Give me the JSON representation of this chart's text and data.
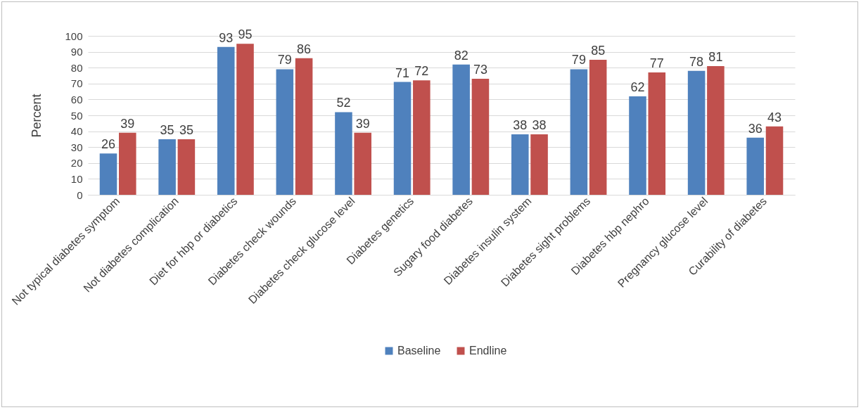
{
  "chart_data": {
    "type": "bar",
    "ylabel": "Percent",
    "categories": [
      "Not typical diabetes symptom",
      "Not diabetes complication",
      "Diet for hbp or diabetics",
      "Diabetes check wounds",
      "Diabetes check glucose level",
      "Diabetes genetics",
      "Sugary food diabetes",
      "Diabetes insulin system",
      "Diabetes sight problems",
      "Diabetes hbp nephro",
      "Pregnancy glucose level",
      "Curability of diabetes"
    ],
    "series": [
      {
        "name": "Baseline",
        "color": "#4f81bd",
        "values": [
          26,
          35,
          93,
          79,
          52,
          71,
          82,
          38,
          79,
          62,
          78,
          36
        ]
      },
      {
        "name": "Endline",
        "color": "#c0504d",
        "values": [
          39,
          35,
          95,
          86,
          39,
          72,
          73,
          38,
          85,
          77,
          81,
          43
        ]
      }
    ],
    "ylim": [
      0,
      100
    ],
    "yticks": [
      0,
      10,
      20,
      30,
      40,
      50,
      60,
      70,
      80,
      90,
      100
    ],
    "grid": "y",
    "legend": "bottom",
    "data_labels": true
  }
}
